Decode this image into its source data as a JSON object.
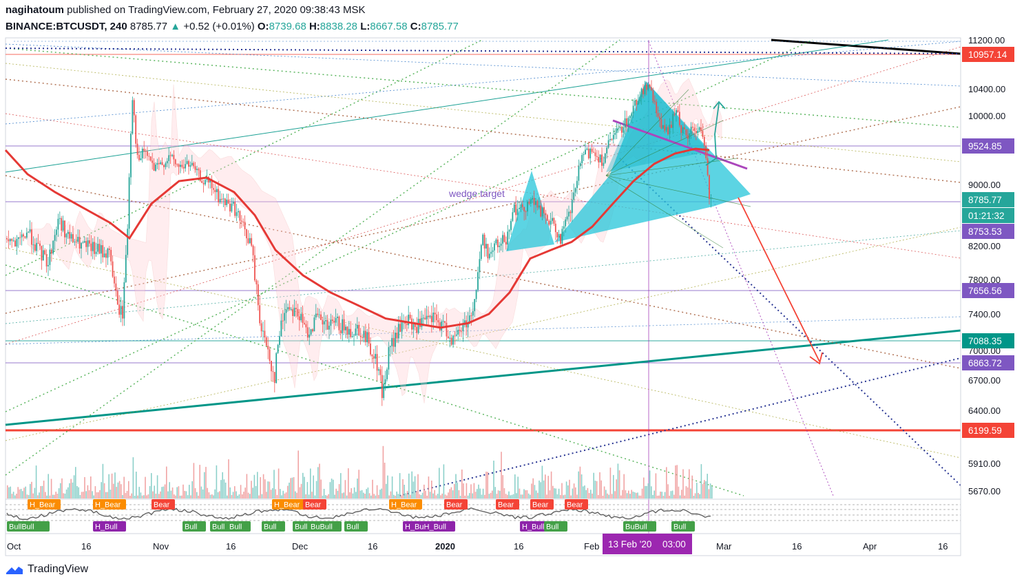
{
  "header": {
    "author": "nagihatoum",
    "published": "published on TradingView.com, February 27, 2020 09:38:43 MSK",
    "symbol": "BINANCE:BTCUSDT, 240",
    "last": "8785.77",
    "change": "+0.52 (+0.01%)",
    "o_label": "O:",
    "o": "8739.68",
    "h_label": "H:",
    "h": "8838.28",
    "l_label": "L:",
    "l": "8667.58",
    "c_label": "C:",
    "c": "8785.77"
  },
  "footer": {
    "brand": "TradingView"
  },
  "colors": {
    "up": "#26a69a",
    "down": "#ef5350",
    "ma": "#e53935",
    "wedge": "#26c6da",
    "trend": "#009688",
    "purple": "#7e57c2",
    "magenta": "#ab47bc",
    "red_level": "#f44336"
  },
  "chart_data": {
    "type": "candlestick",
    "title": "",
    "ylim": [
      5550,
      11300
    ],
    "price_ticks": [
      "11200.00",
      "10400.00",
      "10000.00",
      "9000.00",
      "8200.00",
      "7800.00",
      "7400.00",
      "7000.00",
      "6700.00",
      "6400.00",
      "5910.00",
      "5670.00"
    ],
    "x_ticks": [
      "Oct",
      "16",
      "Nov",
      "16",
      "Dec",
      "16",
      "2020",
      "16",
      "Feb",
      "Mar",
      "16",
      "Apr",
      "16"
    ],
    "price_labels": [
      {
        "text": "10957.14",
        "color": "#f44336"
      },
      {
        "text": "9524.85",
        "color": "#7e57c2"
      },
      {
        "text": "8785.77",
        "color": "#26a69a"
      },
      {
        "text": "01:21:32",
        "color": "#26a69a"
      },
      {
        "text": "8753.53",
        "color": "#7e57c2"
      },
      {
        "text": "7656.56",
        "color": "#7e57c2"
      },
      {
        "text": "7088.35",
        "color": "#009688"
      },
      {
        "text": "6863.72",
        "color": "#7e57c2"
      },
      {
        "text": "6199.59",
        "color": "#f44336"
      }
    ],
    "annotations": {
      "wedge_target": "wedge target",
      "cursor_date": "13 Feb '20",
      "cursor_time": "03:00"
    },
    "indicator_labels": [
      {
        "text": "H_Bear",
        "kind": "bear"
      },
      {
        "text": "H_Bear",
        "kind": "bear"
      },
      {
        "text": "Bear",
        "kind": "bear"
      },
      {
        "text": "H_Bear",
        "kind": "bear"
      },
      {
        "text": "Bear",
        "kind": "bear"
      },
      {
        "text": "H_Bear",
        "kind": "bear"
      },
      {
        "text": "Bear",
        "kind": "bear"
      },
      {
        "text": "Bear",
        "kind": "bear"
      },
      {
        "text": "Bear",
        "kind": "bear"
      },
      {
        "text": "Bear",
        "kind": "bear"
      },
      {
        "text": "BuBull",
        "kind": "bull"
      },
      {
        "text": "BullBull",
        "kind": "bull"
      },
      {
        "text": "H_Bull",
        "kind": "hbull"
      },
      {
        "text": "Bull",
        "kind": "bull"
      },
      {
        "text": "Bull",
        "kind": "bull"
      },
      {
        "text": "Bull",
        "kind": "bull"
      },
      {
        "text": "Bull",
        "kind": "bull"
      },
      {
        "text": "Bull",
        "kind": "bull"
      },
      {
        "text": "BuBull",
        "kind": "bull"
      },
      {
        "text": "Bull",
        "kind": "bull"
      },
      {
        "text": "H_BuH_Bull",
        "kind": "hbull"
      },
      {
        "text": "H_Bull",
        "kind": "hbull"
      },
      {
        "text": "Bull",
        "kind": "bull"
      },
      {
        "text": "Bull",
        "kind": "bull"
      }
    ],
    "key_prices": {
      "open_oct": 8300,
      "peak_oct": 10350,
      "low_nov": 6600,
      "low_dec": 6450,
      "jan_high": 8450,
      "feb_high": 10500,
      "current": 8785.77
    }
  }
}
